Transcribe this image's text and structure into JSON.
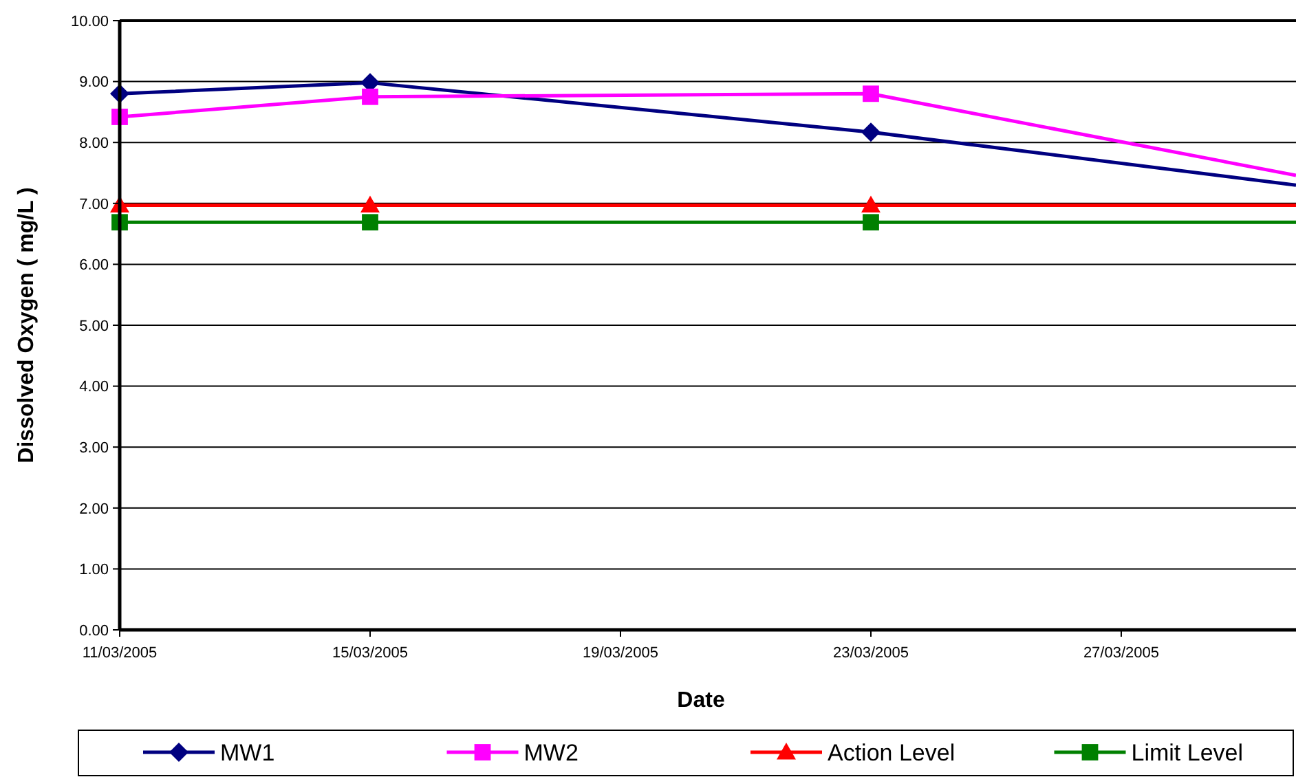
{
  "chart_data": {
    "type": "line",
    "xlabel": "Date",
    "ylabel": "Dissolved Oxygen ( mg/L )",
    "xlim": [
      "2005-03-11",
      "2005-03-29T19:00"
    ],
    "xticks": [
      {
        "value": "2005-03-11",
        "label": "11/03/2005"
      },
      {
        "value": "2005-03-15",
        "label": "15/03/2005"
      },
      {
        "value": "2005-03-19",
        "label": "19/03/2005"
      },
      {
        "value": "2005-03-23",
        "label": "23/03/2005"
      },
      {
        "value": "2005-03-27",
        "label": "27/03/2005"
      }
    ],
    "ylim": [
      0,
      10
    ],
    "yticks": [
      {
        "value": 0,
        "label": "0.00"
      },
      {
        "value": 1,
        "label": "1.00"
      },
      {
        "value": 2,
        "label": "2.00"
      },
      {
        "value": 3,
        "label": "3.00"
      },
      {
        "value": 4,
        "label": "4.00"
      },
      {
        "value": 5,
        "label": "5.00"
      },
      {
        "value": 6,
        "label": "6.00"
      },
      {
        "value": 7,
        "label": "7.00"
      },
      {
        "value": 8,
        "label": "8.00"
      },
      {
        "value": 9,
        "label": "9.00"
      },
      {
        "value": 10,
        "label": "10.00"
      }
    ],
    "grid": "y",
    "legend": "bottom",
    "series": [
      {
        "name": "MW1",
        "color": "#000080",
        "marker": "diamond",
        "x": [
          "2005-03-11",
          "2005-03-15",
          "2005-03-23",
          "2005-03-29T19:00"
        ],
        "values": [
          8.8,
          8.98,
          8.17,
          7.3
        ]
      },
      {
        "name": "MW2",
        "color": "#ff00ff",
        "marker": "square",
        "x": [
          "2005-03-11",
          "2005-03-15",
          "2005-03-23",
          "2005-03-29T19:00"
        ],
        "values": [
          8.42,
          8.75,
          8.8,
          7.46
        ]
      },
      {
        "name": "Action Level",
        "color": "#ff0000",
        "marker": "triangle",
        "x": [
          "2005-03-11",
          "2005-03-15",
          "2005-03-23",
          "2005-03-29T19:00"
        ],
        "values": [
          6.97,
          6.97,
          6.97,
          6.97
        ]
      },
      {
        "name": "Limit Level",
        "color": "#008000",
        "marker": "square",
        "x": [
          "2005-03-11",
          "2005-03-15",
          "2005-03-23",
          "2005-03-29T19:00"
        ],
        "values": [
          6.69,
          6.69,
          6.69,
          6.69
        ]
      }
    ]
  }
}
